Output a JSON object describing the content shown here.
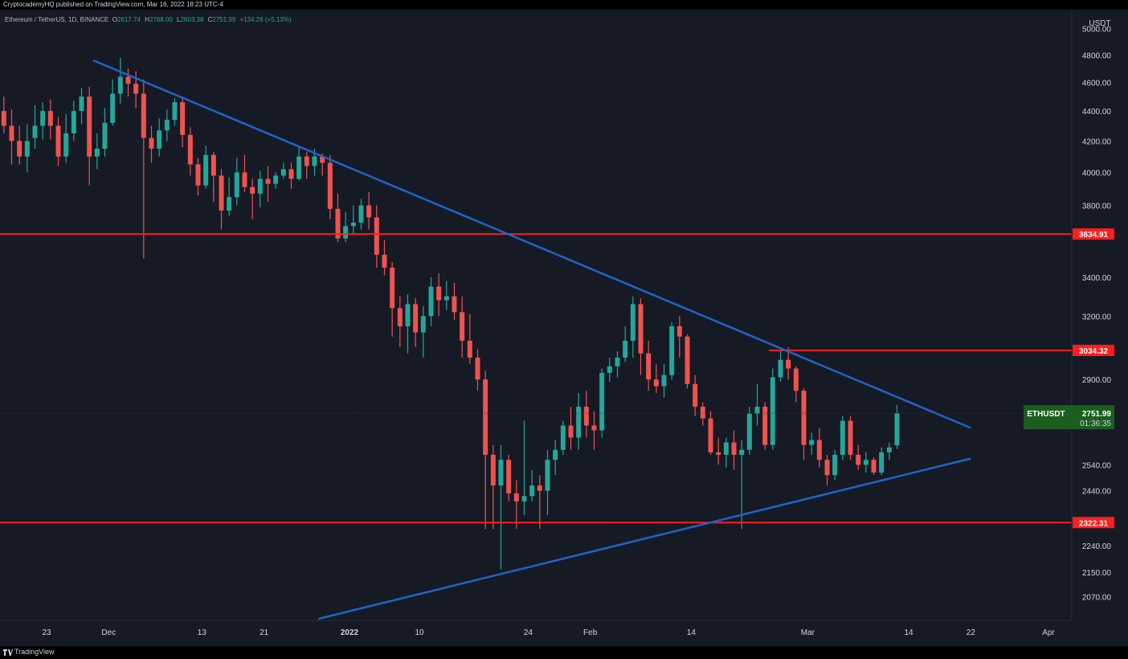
{
  "header": {
    "published": "CryptocademyHQ published on TradingView.com, Mar 16, 2022 18:23 UTC-4"
  },
  "legend": {
    "symbol": "Ethereum / TetherUS, 1D, BINANCE",
    "o_label": "O",
    "o": "2617.74",
    "h_label": "H",
    "h": "2788.00",
    "l_label": "L",
    "l": "2603.38",
    "c_label": "C",
    "c": "2751.99",
    "change": "+134.26 (+5.13%)"
  },
  "footer": {
    "brand": "TradingView"
  },
  "colors": {
    "up": "#26a69a",
    "down": "#ef5350",
    "level": "#ff1e1e",
    "trend": "#1e64c8",
    "price_tag": "#1b5e20",
    "background": "#161a25"
  },
  "chart_data": {
    "type": "candlestick",
    "currency": "USDT",
    "y_scale": "log",
    "ylim": [
      1995,
      5150
    ],
    "xlim": [
      "2021-11-17",
      "2022-04-04"
    ],
    "y_ticks": [
      "5000.00",
      "4800.00",
      "4600.00",
      "4400.00",
      "4200.00",
      "4000.00",
      "3800.00",
      "3400.00",
      "3200.00",
      "2900.00",
      "2540.00",
      "2440.00",
      "2240.00",
      "2150.00",
      "2070.00"
    ],
    "x_ticks": [
      {
        "date": "2021-11-23",
        "label": "23"
      },
      {
        "date": "2021-12-01",
        "label": "Dec"
      },
      {
        "date": "2021-12-13",
        "label": "13"
      },
      {
        "date": "2021-12-21",
        "label": "21"
      },
      {
        "date": "2022-01-01",
        "label": "2022"
      },
      {
        "date": "2022-01-10",
        "label": "10"
      },
      {
        "date": "2022-01-24",
        "label": "24"
      },
      {
        "date": "2022-02-01",
        "label": "Feb"
      },
      {
        "date": "2022-02-14",
        "label": "14"
      },
      {
        "date": "2022-03-01",
        "label": "Mar"
      },
      {
        "date": "2022-03-14",
        "label": "14"
      },
      {
        "date": "2022-03-22",
        "label": "22"
      },
      {
        "date": "2022-04-01",
        "label": "Apr"
      }
    ],
    "start_date": "2021-11-17",
    "candles": [
      [
        4400,
        4300,
        4500,
        4250
      ],
      [
        4300,
        4200,
        4410,
        4050
      ],
      [
        4200,
        4100,
        4300,
        4050
      ],
      [
        4100,
        4200,
        4310,
        4000
      ],
      [
        4220,
        4300,
        4440,
        4150
      ],
      [
        4300,
        4400,
        4460,
        4210
      ],
      [
        4400,
        4300,
        4480,
        4210
      ],
      [
        4300,
        4100,
        4360,
        4040
      ],
      [
        4100,
        4250,
        4380,
        4060
      ],
      [
        4250,
        4400,
        4470,
        4200
      ],
      [
        4400,
        4500,
        4560,
        4310
      ],
      [
        4500,
        4100,
        4570,
        3920
      ],
      [
        4100,
        4150,
        4250,
        4020
      ],
      [
        4150,
        4320,
        4420,
        4100
      ],
      [
        4320,
        4520,
        4620,
        4300
      ],
      [
        4520,
        4640,
        4780,
        4450
      ],
      [
        4640,
        4590,
        4700,
        4500
      ],
      [
        4590,
        4520,
        4680,
        4420
      ],
      [
        4520,
        4220,
        4620,
        3500
      ],
      [
        4220,
        4150,
        4300,
        4060
      ],
      [
        4150,
        4270,
        4350,
        4100
      ],
      [
        4270,
        4340,
        4410,
        4200
      ],
      [
        4340,
        4460,
        4490,
        4300
      ],
      [
        4460,
        4240,
        4500,
        4160
      ],
      [
        4240,
        4050,
        4290,
        3980
      ],
      [
        4050,
        3920,
        4090,
        3860
      ],
      [
        3920,
        4110,
        4170,
        3900
      ],
      [
        4110,
        3980,
        4130,
        3820
      ],
      [
        3980,
        3770,
        4020,
        3660
      ],
      [
        3770,
        3850,
        3970,
        3740
      ],
      [
        3850,
        4000,
        4090,
        3800
      ],
      [
        4000,
        3910,
        4110,
        3880
      ],
      [
        3910,
        3870,
        3960,
        3720
      ],
      [
        3870,
        3960,
        4010,
        3790
      ],
      [
        3960,
        3930,
        4040,
        3820
      ],
      [
        3930,
        3980,
        4000,
        3900
      ],
      [
        3980,
        4020,
        4060,
        3960
      ],
      [
        4020,
        3960,
        4060,
        3900
      ],
      [
        3960,
        4100,
        4170,
        3950
      ],
      [
        4100,
        4040,
        4130,
        3960
      ],
      [
        4040,
        4100,
        4150,
        3980
      ],
      [
        4100,
        4060,
        4120,
        3980
      ],
      [
        4060,
        3780,
        4110,
        3720
      ],
      [
        3780,
        3610,
        3870,
        3590
      ],
      [
        3610,
        3680,
        3760,
        3590
      ],
      [
        3680,
        3700,
        3800,
        3630
      ],
      [
        3700,
        3800,
        3840,
        3660
      ],
      [
        3800,
        3730,
        3880,
        3660
      ],
      [
        3730,
        3520,
        3800,
        3450
      ],
      [
        3520,
        3450,
        3600,
        3410
      ],
      [
        3450,
        3240,
        3480,
        3100
      ],
      [
        3240,
        3150,
        3300,
        3050
      ],
      [
        3150,
        3260,
        3310,
        3020
      ],
      [
        3260,
        3120,
        3290,
        3050
      ],
      [
        3120,
        3200,
        3250,
        3000
      ],
      [
        3200,
        3350,
        3400,
        3150
      ],
      [
        3350,
        3280,
        3420,
        3200
      ],
      [
        3280,
        3300,
        3380,
        3230
      ],
      [
        3300,
        3220,
        3370,
        3180
      ],
      [
        3220,
        3080,
        3300,
        3000
      ],
      [
        3080,
        3000,
        3210,
        2970
      ],
      [
        3000,
        2900,
        3040,
        2850
      ],
      [
        2900,
        2580,
        2940,
        2300
      ],
      [
        2580,
        2460,
        2620,
        2300
      ],
      [
        2460,
        2560,
        2620,
        2160
      ],
      [
        2560,
        2430,
        2580,
        2400
      ],
      [
        2430,
        2400,
        2480,
        2300
      ],
      [
        2400,
        2420,
        2720,
        2350
      ],
      [
        2420,
        2460,
        2520,
        2400
      ],
      [
        2460,
        2440,
        2500,
        2300
      ],
      [
        2440,
        2560,
        2600,
        2350
      ],
      [
        2560,
        2600,
        2640,
        2500
      ],
      [
        2600,
        2700,
        2720,
        2580
      ],
      [
        2700,
        2650,
        2780,
        2600
      ],
      [
        2650,
        2780,
        2840,
        2600
      ],
      [
        2780,
        2700,
        2850,
        2650
      ],
      [
        2700,
        2680,
        2760,
        2600
      ],
      [
        2680,
        2930,
        2950,
        2650
      ],
      [
        2930,
        2960,
        3000,
        2890
      ],
      [
        2960,
        3000,
        3030,
        2910
      ],
      [
        3000,
        3080,
        3150,
        2980
      ],
      [
        3080,
        3260,
        3300,
        3000
      ],
      [
        3260,
        3020,
        3290,
        2920
      ],
      [
        3020,
        2900,
        3080,
        2850
      ],
      [
        2900,
        2870,
        2970,
        2840
      ],
      [
        2870,
        2920,
        2970,
        2820
      ],
      [
        2920,
        3150,
        3170,
        2900
      ],
      [
        3150,
        3100,
        3200,
        3000
      ],
      [
        3100,
        2880,
        3110,
        2860
      ],
      [
        2880,
        2780,
        2920,
        2740
      ],
      [
        2780,
        2730,
        2800,
        2700
      ],
      [
        2730,
        2590,
        2760,
        2580
      ],
      [
        2590,
        2580,
        2650,
        2540
      ],
      [
        2580,
        2630,
        2650,
        2530
      ],
      [
        2630,
        2580,
        2680,
        2520
      ],
      [
        2580,
        2600,
        2640,
        2300
      ],
      [
        2600,
        2750,
        2780,
        2580
      ],
      [
        2750,
        2780,
        2880,
        2700
      ],
      [
        2780,
        2620,
        2800,
        2600
      ],
      [
        2620,
        2910,
        2950,
        2600
      ],
      [
        2910,
        2990,
        3030,
        2890
      ],
      [
        2990,
        2950,
        3050,
        2900
      ],
      [
        2950,
        2850,
        2960,
        2800
      ],
      [
        2850,
        2620,
        2860,
        2560
      ],
      [
        2620,
        2640,
        2670,
        2580
      ],
      [
        2640,
        2560,
        2690,
        2530
      ],
      [
        2560,
        2500,
        2580,
        2460
      ],
      [
        2500,
        2580,
        2600,
        2480
      ],
      [
        2580,
        2720,
        2740,
        2560
      ],
      [
        2720,
        2580,
        2740,
        2560
      ],
      [
        2580,
        2540,
        2620,
        2520
      ],
      [
        2540,
        2560,
        2590,
        2510
      ],
      [
        2560,
        2510,
        2570,
        2500
      ],
      [
        2510,
        2590,
        2610,
        2500
      ],
      [
        2590,
        2610,
        2630,
        2560
      ],
      [
        2617.74,
        2751.99,
        2788,
        2603.38
      ]
    ],
    "levels": [
      {
        "price": 3634.91,
        "label": "3634.91",
        "from": "2021-11-17"
      },
      {
        "price": 3034.32,
        "label": "3034.32",
        "from": "2022-02-24"
      },
      {
        "price": 2322.31,
        "label": "2322.31",
        "from": "2021-11-17"
      }
    ],
    "trendlines": [
      {
        "from": [
          "2021-11-29",
          4760
        ],
        "to": [
          "2022-03-22",
          2690
        ]
      },
      {
        "from": [
          "2021-12-28",
          2000
        ],
        "to": [
          "2022-03-22",
          2565
        ]
      }
    ],
    "last_price": {
      "symbol": "ETHUSDT",
      "price": 2751.99,
      "label": "2751.99",
      "countdown": "01:36:35"
    }
  }
}
